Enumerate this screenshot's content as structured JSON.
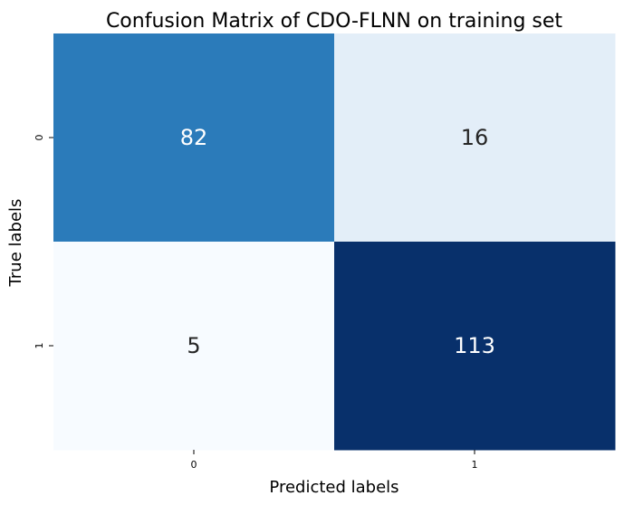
{
  "chart_data": {
    "type": "heatmap",
    "title": "Confusion Matrix of CDO-FLNN on training set",
    "xlabel": "Predicted labels",
    "ylabel": "True labels",
    "x_categories": [
      "0",
      "1"
    ],
    "y_categories": [
      "0",
      "1"
    ],
    "values": [
      [
        82,
        16
      ],
      [
        5,
        113
      ]
    ],
    "colormap": "Blues",
    "colorbar": false,
    "grid": false
  }
}
